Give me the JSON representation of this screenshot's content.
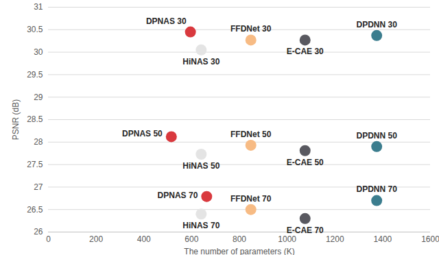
{
  "chart_data": {
    "type": "scatter",
    "x_label": "The number of parameters (K)",
    "y_label": "PSNR (dB)",
    "xlim": [
      0,
      1600
    ],
    "xticks": [
      0,
      200,
      400,
      600,
      800,
      1000,
      1200,
      1400,
      1600
    ],
    "ylim": [
      26,
      31
    ],
    "yticks": [
      26,
      26.5,
      27,
      27.5,
      28,
      28.5,
      29,
      29.5,
      30,
      30.5,
      31
    ],
    "grid": true,
    "marker": "circle",
    "points": [
      {
        "label": "DPNAS 30",
        "x": 595,
        "y": 30.45,
        "color": "#d9393e"
      },
      {
        "label": "HiNAS 30",
        "x": 640,
        "y": 30.05,
        "color": "#e4e4e4"
      },
      {
        "label": "FFDNet 30",
        "x": 848,
        "y": 30.27,
        "color": "#f7bb84"
      },
      {
        "label": "E-CAE 30",
        "x": 1075,
        "y": 30.27,
        "color": "#595960"
      },
      {
        "label": "DPDNN 30",
        "x": 1375,
        "y": 30.37,
        "color": "#3b7d8e"
      },
      {
        "label": "DPNAS 50",
        "x": 515,
        "y": 28.12,
        "color": "#d9393e"
      },
      {
        "label": "HiNAS 50",
        "x": 640,
        "y": 27.73,
        "color": "#e4e4e4"
      },
      {
        "label": "FFDNet 50",
        "x": 848,
        "y": 27.93,
        "color": "#f7bb84"
      },
      {
        "label": "E-CAE 50",
        "x": 1075,
        "y": 27.81,
        "color": "#595960"
      },
      {
        "label": "DPDNN 50",
        "x": 1375,
        "y": 27.9,
        "color": "#3b7d8e"
      },
      {
        "label": "DPNAS 70",
        "x": 663,
        "y": 26.79,
        "color": "#d9393e"
      },
      {
        "label": "HiNAS 70",
        "x": 640,
        "y": 26.4,
        "color": "#e4e4e4"
      },
      {
        "label": "FFDNet 70",
        "x": 848,
        "y": 26.5,
        "color": "#f7bb84"
      },
      {
        "label": "E-CAE 70",
        "x": 1075,
        "y": 26.3,
        "color": "#595960"
      },
      {
        "label": "DPDNN 70",
        "x": 1375,
        "y": 26.7,
        "color": "#3b7d8e"
      }
    ]
  }
}
